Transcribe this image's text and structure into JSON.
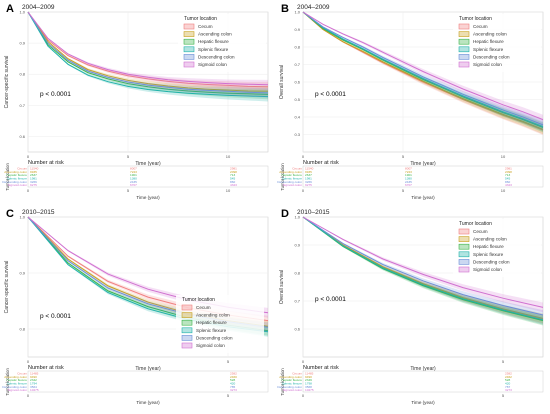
{
  "figure": {
    "panel_labels": [
      "A",
      "B",
      "C",
      "D"
    ]
  },
  "chart_data": [
    {
      "panel": "A",
      "type": "line",
      "title": "2004–2009",
      "xlabel": "Time (year)",
      "ylabel": "Cancer-specific survival",
      "xlim": [
        0,
        12
      ],
      "ylim": [
        0.55,
        1.0
      ],
      "x_ticks": [
        "0",
        "5",
        "10"
      ],
      "y_ticks": [
        "1.0",
        "0.9",
        "0.8",
        "0.7",
        "0.6"
      ],
      "pvalue": "p < 0.0001",
      "legend_title": "Tumor location",
      "legend_position": "top-right",
      "grid": true,
      "series": [
        {
          "name": "Cecum",
          "color": "#f08080",
          "x": [
            0,
            1,
            2,
            3,
            4,
            5,
            6,
            7,
            8,
            9,
            10,
            11,
            12
          ],
          "y": [
            1.0,
            0.91,
            0.86,
            0.83,
            0.81,
            0.795,
            0.785,
            0.777,
            0.771,
            0.767,
            0.764,
            0.761,
            0.76
          ]
        },
        {
          "name": "Ascending colon",
          "color": "#c8a020",
          "x": [
            0,
            1,
            2,
            3,
            4,
            5,
            6,
            7,
            8,
            9,
            10,
            11,
            12
          ],
          "y": [
            1.0,
            0.905,
            0.85,
            0.815,
            0.795,
            0.78,
            0.77,
            0.762,
            0.756,
            0.752,
            0.749,
            0.746,
            0.745
          ]
        },
        {
          "name": "Hepatic flexure",
          "color": "#3cb44b",
          "x": [
            0,
            1,
            2,
            3,
            4,
            5,
            6,
            7,
            8,
            9,
            10,
            11,
            12
          ],
          "y": [
            1.0,
            0.895,
            0.84,
            0.805,
            0.785,
            0.77,
            0.76,
            0.752,
            0.746,
            0.742,
            0.739,
            0.737,
            0.735
          ]
        },
        {
          "name": "Splenic flexure",
          "color": "#20b2aa",
          "x": [
            0,
            1,
            2,
            3,
            4,
            5,
            6,
            7,
            8,
            9,
            10,
            11,
            12
          ],
          "y": [
            1.0,
            0.89,
            0.832,
            0.797,
            0.776,
            0.761,
            0.751,
            0.744,
            0.739,
            0.735,
            0.732,
            0.73,
            0.728
          ]
        },
        {
          "name": "Descending colon",
          "color": "#6a8fd8",
          "x": [
            0,
            1,
            2,
            3,
            4,
            5,
            6,
            7,
            8,
            9,
            10,
            11,
            12
          ],
          "y": [
            1.0,
            0.9,
            0.845,
            0.81,
            0.79,
            0.775,
            0.765,
            0.758,
            0.752,
            0.748,
            0.745,
            0.742,
            0.74
          ]
        },
        {
          "name": "Sigmoid colon",
          "color": "#d070d0",
          "x": [
            0,
            1,
            2,
            3,
            4,
            5,
            6,
            7,
            8,
            9,
            10,
            11,
            12
          ],
          "y": [
            1.0,
            0.915,
            0.865,
            0.835,
            0.815,
            0.8,
            0.79,
            0.782,
            0.777,
            0.773,
            0.77,
            0.768,
            0.766
          ]
        }
      ],
      "risk_table": {
        "title": "Number at risk",
        "row_axis_label": "Tumor location",
        "xlabel": "Time (year)",
        "rows": [
          "Cecum",
          "Ascending colon",
          "Hepatic flexure",
          "Splenic flexure",
          "Descending colon",
          "Sigmoid colon"
        ],
        "times": [
          "0",
          "5",
          "10"
        ],
        "values": [
          [
            "11540",
            "8007",
            "2981"
          ],
          [
            "9935",
            "7223",
            "2098"
          ],
          [
            "2637",
            "1901",
            "713"
          ],
          [
            "1981",
            "1380",
            "545"
          ],
          [
            "3266",
            "2435",
            "860"
          ],
          [
            "9275",
            "6707",
            "4323"
          ]
        ]
      }
    },
    {
      "panel": "B",
      "type": "line",
      "title": "2004–2009",
      "xlabel": "Time (year)",
      "ylabel": "Overall survival",
      "xlim": [
        0,
        12
      ],
      "ylim": [
        0.2,
        1.0
      ],
      "x_ticks": [
        "0",
        "5",
        "10"
      ],
      "y_ticks": [
        "1.0",
        "0.9",
        "0.8",
        "0.7",
        "0.6",
        "0.5",
        "0.4",
        "0.3"
      ],
      "pvalue": "p < 0.0001",
      "legend_title": "Tumor location",
      "legend_position": "top-right",
      "grid": true,
      "series": [
        {
          "name": "Cecum",
          "color": "#f08080",
          "x": [
            0,
            1,
            2,
            3,
            4,
            5,
            6,
            7,
            8,
            9,
            10,
            11,
            12
          ],
          "y": [
            1.0,
            0.9,
            0.83,
            0.77,
            0.71,
            0.655,
            0.6,
            0.55,
            0.5,
            0.455,
            0.41,
            0.37,
            0.325
          ]
        },
        {
          "name": "Ascending colon",
          "color": "#c8a020",
          "x": [
            0,
            1,
            2,
            3,
            4,
            5,
            6,
            7,
            8,
            9,
            10,
            11,
            12
          ],
          "y": [
            1.0,
            0.9,
            0.83,
            0.775,
            0.715,
            0.66,
            0.605,
            0.555,
            0.505,
            0.46,
            0.415,
            0.375,
            0.33
          ]
        },
        {
          "name": "Hepatic flexure",
          "color": "#3cb44b",
          "x": [
            0,
            1,
            2,
            3,
            4,
            5,
            6,
            7,
            8,
            9,
            10,
            11,
            12
          ],
          "y": [
            1.0,
            0.905,
            0.84,
            0.785,
            0.725,
            0.67,
            0.615,
            0.565,
            0.515,
            0.47,
            0.425,
            0.385,
            0.34
          ]
        },
        {
          "name": "Splenic flexure",
          "color": "#20b2aa",
          "x": [
            0,
            1,
            2,
            3,
            4,
            5,
            6,
            7,
            8,
            9,
            10,
            11,
            12
          ],
          "y": [
            1.0,
            0.91,
            0.845,
            0.79,
            0.73,
            0.675,
            0.62,
            0.57,
            0.52,
            0.475,
            0.43,
            0.39,
            0.345
          ]
        },
        {
          "name": "Descending colon",
          "color": "#6a8fd8",
          "x": [
            0,
            1,
            2,
            3,
            4,
            5,
            6,
            7,
            8,
            9,
            10,
            11,
            12
          ],
          "y": [
            1.0,
            0.915,
            0.855,
            0.8,
            0.74,
            0.685,
            0.63,
            0.58,
            0.53,
            0.485,
            0.44,
            0.4,
            0.355
          ]
        },
        {
          "name": "Sigmoid colon",
          "color": "#d070d0",
          "x": [
            0,
            1,
            2,
            3,
            4,
            5,
            6,
            7,
            8,
            9,
            10,
            11,
            12
          ],
          "y": [
            1.0,
            0.93,
            0.875,
            0.825,
            0.77,
            0.715,
            0.66,
            0.61,
            0.56,
            0.515,
            0.47,
            0.43,
            0.385
          ]
        }
      ],
      "risk_table": {
        "title": "Number at risk",
        "row_axis_label": "Tumor location",
        "xlabel": "Time (year)",
        "rows": [
          "Cecum",
          "Ascending colon",
          "Hepatic flexure",
          "Splenic flexure",
          "Descending colon",
          "Sigmoid colon"
        ],
        "times": [
          "0",
          "5",
          "10"
        ],
        "values": [
          [
            "11540",
            "8007",
            "2981"
          ],
          [
            "9935",
            "7223",
            "2098"
          ],
          [
            "2637",
            "1901",
            "713"
          ],
          [
            "1981",
            "1380",
            "545"
          ],
          [
            "3266",
            "2435",
            "860"
          ],
          [
            "9275",
            "6707",
            "4323"
          ]
        ]
      }
    },
    {
      "panel": "C",
      "type": "line",
      "title": "2010–2015",
      "xlabel": "Time (year)",
      "ylabel": "Cancer-specific survival",
      "xlim": [
        0,
        6
      ],
      "ylim": [
        0.75,
        1.0
      ],
      "x_ticks": [
        "0",
        "5"
      ],
      "y_ticks": [
        "1.0",
        "0.9",
        "0.8"
      ],
      "pvalue": "p < 0.0001",
      "legend_title": "Tumor location",
      "legend_position": "bottom-center",
      "grid": true,
      "series": [
        {
          "name": "Cecum",
          "color": "#f08080",
          "x": [
            0,
            1,
            2,
            3,
            4,
            5,
            6
          ],
          "y": [
            1.0,
            0.93,
            0.885,
            0.857,
            0.838,
            0.825,
            0.815
          ]
        },
        {
          "name": "Ascending colon",
          "color": "#c8a020",
          "x": [
            0,
            1,
            2,
            3,
            4,
            5,
            6
          ],
          "y": [
            1.0,
            0.925,
            0.877,
            0.848,
            0.828,
            0.815,
            0.805
          ]
        },
        {
          "name": "Hepatic flexure",
          "color": "#3cb44b",
          "x": [
            0,
            1,
            2,
            3,
            4,
            5,
            6
          ],
          "y": [
            1.0,
            0.918,
            0.868,
            0.84,
            0.82,
            0.807,
            0.797
          ]
        },
        {
          "name": "Splenic flexure",
          "color": "#20b2aa",
          "x": [
            0,
            1,
            2,
            3,
            4,
            5,
            6
          ],
          "y": [
            1.0,
            0.915,
            0.865,
            0.836,
            0.817,
            0.804,
            0.795
          ]
        },
        {
          "name": "Descending colon",
          "color": "#6a8fd8",
          "x": [
            0,
            1,
            2,
            3,
            4,
            5,
            6
          ],
          "y": [
            1.0,
            0.922,
            0.873,
            0.845,
            0.826,
            0.813,
            0.803
          ]
        },
        {
          "name": "Sigmoid colon",
          "color": "#d070d0",
          "x": [
            0,
            1,
            2,
            3,
            4,
            5,
            6
          ],
          "y": [
            1.0,
            0.94,
            0.898,
            0.871,
            0.852,
            0.839,
            0.829
          ]
        }
      ],
      "risk_table": {
        "title": "Number at risk",
        "row_axis_label": "Tumor location",
        "xlabel": "Time (year)",
        "rows": [
          "Cecum",
          "Ascending colon",
          "Hepatic flexure",
          "Splenic flexure",
          "Descending colon",
          "Sigmoid colon"
        ],
        "times": [
          "0",
          "5"
        ],
        "values": [
          [
            "11485",
            "2582"
          ],
          [
            "9490",
            "2460"
          ],
          [
            "2342",
            "528"
          ],
          [
            "1794",
            "420"
          ],
          [
            "3564",
            "785"
          ],
          [
            "10275",
            "3273"
          ]
        ]
      }
    },
    {
      "panel": "D",
      "type": "line",
      "title": "2010–2015",
      "xlabel": "Time (year)",
      "ylabel": "Overall survival",
      "xlim": [
        0,
        6
      ],
      "ylim": [
        0.5,
        1.0
      ],
      "x_ticks": [
        "0",
        "5"
      ],
      "y_ticks": [
        "1.0",
        "0.9",
        "0.8",
        "0.7",
        "0.6"
      ],
      "pvalue": "p < 0.0001",
      "legend_title": "Tumor location",
      "legend_position": "top-right",
      "grid": true,
      "series": [
        {
          "name": "Cecum",
          "color": "#f08080",
          "x": [
            0,
            1,
            2,
            3,
            4,
            5,
            6
          ],
          "y": [
            1.0,
            0.9,
            0.82,
            0.76,
            0.71,
            0.67,
            0.635
          ]
        },
        {
          "name": "Ascending colon",
          "color": "#c8a020",
          "x": [
            0,
            1,
            2,
            3,
            4,
            5,
            6
          ],
          "y": [
            1.0,
            0.9,
            0.822,
            0.762,
            0.712,
            0.672,
            0.638
          ]
        },
        {
          "name": "Hepatic flexure",
          "color": "#3cb44b",
          "x": [
            0,
            1,
            2,
            3,
            4,
            5,
            6
          ],
          "y": [
            1.0,
            0.895,
            0.815,
            0.755,
            0.705,
            0.665,
            0.63
          ]
        },
        {
          "name": "Splenic flexure",
          "color": "#20b2aa",
          "x": [
            0,
            1,
            2,
            3,
            4,
            5,
            6
          ],
          "y": [
            1.0,
            0.897,
            0.818,
            0.758,
            0.708,
            0.668,
            0.633
          ]
        },
        {
          "name": "Descending colon",
          "color": "#6a8fd8",
          "x": [
            0,
            1,
            2,
            3,
            4,
            5,
            6
          ],
          "y": [
            1.0,
            0.905,
            0.83,
            0.772,
            0.723,
            0.684,
            0.65
          ]
        },
        {
          "name": "Sigmoid colon",
          "color": "#d070d0",
          "x": [
            0,
            1,
            2,
            3,
            4,
            5,
            6
          ],
          "y": [
            1.0,
            0.92,
            0.85,
            0.795,
            0.748,
            0.71,
            0.677
          ]
        }
      ],
      "risk_table": {
        "title": "Number at risk",
        "row_axis_label": "Tumor location",
        "xlabel": "Time (year)",
        "rows": [
          "Cecum",
          "Ascending colon",
          "Hepatic flexure",
          "Splenic flexure",
          "Descending colon",
          "Sigmoid colon"
        ],
        "times": [
          "0",
          "5"
        ],
        "values": [
          [
            "11485",
            "2582"
          ],
          [
            "9490",
            "2462"
          ],
          [
            "2349",
            "528"
          ],
          [
            "1798",
            "420"
          ],
          [
            "3568",
            "787"
          ],
          [
            "10275",
            "3273"
          ]
        ]
      }
    }
  ]
}
